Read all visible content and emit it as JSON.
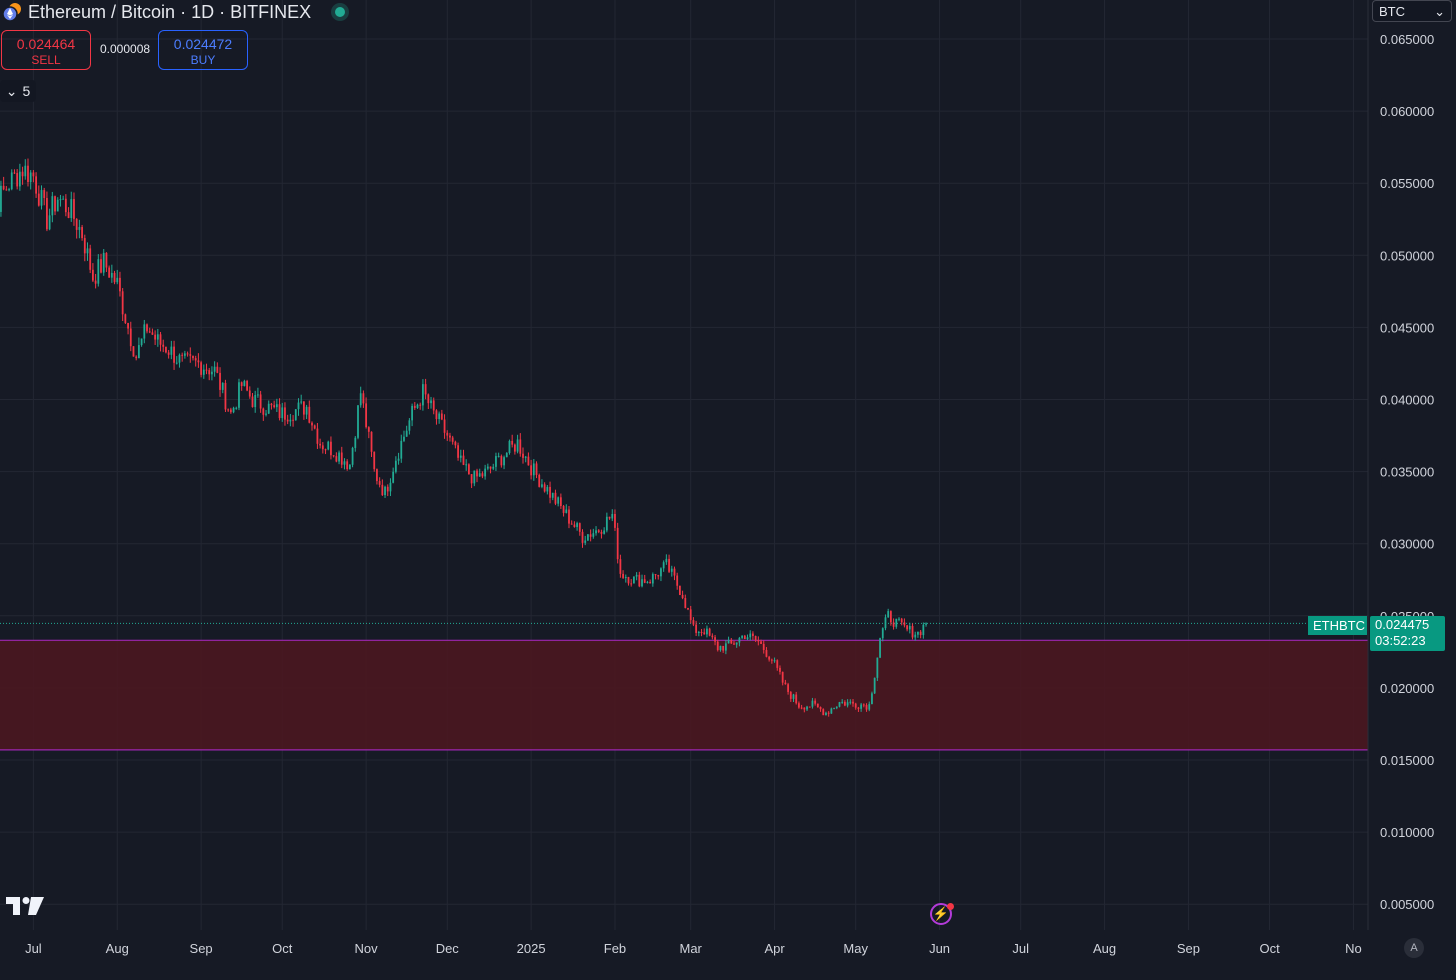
{
  "header": {
    "symbol_title": "Ethereum / Bitcoin · 1D · BITFINEX",
    "sell_price": "0.024464",
    "sell_label": "SELL",
    "spread": "0.000008",
    "buy_price": "0.024472",
    "buy_label": "BUY",
    "indicator_count": "5",
    "currency": "BTC"
  },
  "price_tags": {
    "symbol": "ETHBTC",
    "last_price": "0.024475",
    "countdown": "03:52:23"
  },
  "icons": {
    "logo": "eth-btc-coin-icon",
    "status": "market-open-dot-icon",
    "collapse": "chevron-down-icon",
    "currency_dropdown": "chevron-down-icon",
    "tradingview": "tradingview-logo-icon",
    "flash": "lightning-icon",
    "auto_scale": "auto-scale-icon"
  },
  "auto_label": "A",
  "colors": {
    "background": "#161a25",
    "grid": "#232733",
    "up": "#22ab94",
    "down": "#f23645",
    "zone_fill": "#4a1720",
    "zone_border": "#9c27b0",
    "price_line": "#22ab94"
  },
  "chart_data": {
    "type": "candlestick",
    "symbol": "ETHBTC",
    "timeframe": "1D",
    "x_tick_labels": [
      "Jul",
      "Aug",
      "Sep",
      "Oct",
      "Nov",
      "Dec",
      "2025",
      "Feb",
      "Mar",
      "Apr",
      "May",
      "Jun",
      "Jul",
      "Aug",
      "Sep",
      "Oct",
      "No"
    ],
    "y_tick_labels": [
      "0.065000",
      "0.060000",
      "0.055000",
      "0.050000",
      "0.045000",
      "0.040000",
      "0.035000",
      "0.030000",
      "0.025000",
      "0.020000",
      "0.015000",
      "0.010000",
      "0.005000"
    ],
    "ylim": [
      0.0035,
      0.0665
    ],
    "x_start": "2024-06-12",
    "x_end": "2025-11-08",
    "grid": true,
    "last_price": 0.024475,
    "support_zone": {
      "from": 0.0157,
      "to": 0.0233
    },
    "price_path": [
      [
        "2024-06-12",
        0.0525
      ],
      [
        "2024-06-17",
        0.0535
      ],
      [
        "2024-06-22",
        0.055
      ],
      [
        "2024-06-27",
        0.056
      ],
      [
        "2024-07-01",
        0.0555
      ],
      [
        "2024-07-06",
        0.0525
      ],
      [
        "2024-07-10",
        0.054
      ],
      [
        "2024-07-15",
        0.053
      ],
      [
        "2024-07-19",
        0.0515
      ],
      [
        "2024-07-23",
        0.0485
      ],
      [
        "2024-07-27",
        0.0495
      ],
      [
        "2024-08-01",
        0.048
      ],
      [
        "2024-08-05",
        0.045
      ],
      [
        "2024-08-08",
        0.043
      ],
      [
        "2024-08-12",
        0.045
      ],
      [
        "2024-08-16",
        0.044
      ],
      [
        "2024-08-20",
        0.0435
      ],
      [
        "2024-08-25",
        0.0425
      ],
      [
        "2024-08-31",
        0.0425
      ],
      [
        "2024-09-06",
        0.042
      ],
      [
        "2024-09-12",
        0.039
      ],
      [
        "2024-09-16",
        0.041
      ],
      [
        "2024-09-20",
        0.04
      ],
      [
        "2024-09-25",
        0.0395
      ],
      [
        "2024-10-01",
        0.039
      ],
      [
        "2024-10-10",
        0.0395
      ],
      [
        "2024-10-15",
        0.037
      ],
      [
        "2024-10-20",
        0.0365
      ],
      [
        "2024-10-26",
        0.0355
      ],
      [
        "2024-10-30",
        0.0405
      ],
      [
        "2024-11-04",
        0.035
      ],
      [
        "2024-11-08",
        0.0335
      ],
      [
        "2024-11-12",
        0.036
      ],
      [
        "2024-11-18",
        0.039
      ],
      [
        "2024-11-22",
        0.0405
      ],
      [
        "2024-11-26",
        0.039
      ],
      [
        "2024-12-01",
        0.0375
      ],
      [
        "2024-12-06",
        0.0355
      ],
      [
        "2024-12-11",
        0.0345
      ],
      [
        "2024-12-16",
        0.035
      ],
      [
        "2024-12-21",
        0.036
      ],
      [
        "2024-12-27",
        0.037
      ],
      [
        "2025-01-02",
        0.035
      ],
      [
        "2025-01-08",
        0.0335
      ],
      [
        "2025-01-14",
        0.032
      ],
      [
        "2025-01-20",
        0.0305
      ],
      [
        "2025-01-26",
        0.031
      ],
      [
        "2025-01-31",
        0.032
      ],
      [
        "2025-02-03",
        0.028
      ],
      [
        "2025-02-08",
        0.0275
      ],
      [
        "2025-02-14",
        0.0275
      ],
      [
        "2025-02-20",
        0.0285
      ],
      [
        "2025-02-26",
        0.0265
      ],
      [
        "2025-03-02",
        0.024
      ],
      [
        "2025-03-06",
        0.024
      ],
      [
        "2025-03-11",
        0.0228
      ],
      [
        "2025-03-16",
        0.023
      ],
      [
        "2025-03-21",
        0.0237
      ],
      [
        "2025-03-26",
        0.0232
      ],
      [
        "2025-03-31",
        0.022
      ],
      [
        "2025-04-05",
        0.02
      ],
      [
        "2025-04-10",
        0.0188
      ],
      [
        "2025-04-15",
        0.0188
      ],
      [
        "2025-04-20",
        0.0183
      ],
      [
        "2025-04-25",
        0.019
      ],
      [
        "2025-05-01",
        0.0189
      ],
      [
        "2025-05-06",
        0.0188
      ],
      [
        "2025-05-08",
        0.021
      ],
      [
        "2025-05-10",
        0.0235
      ],
      [
        "2025-05-13",
        0.025
      ],
      [
        "2025-05-16",
        0.0245
      ],
      [
        "2025-05-20",
        0.024
      ],
      [
        "2025-05-24",
        0.0238
      ],
      [
        "2025-05-27",
        0.0245
      ]
    ]
  }
}
